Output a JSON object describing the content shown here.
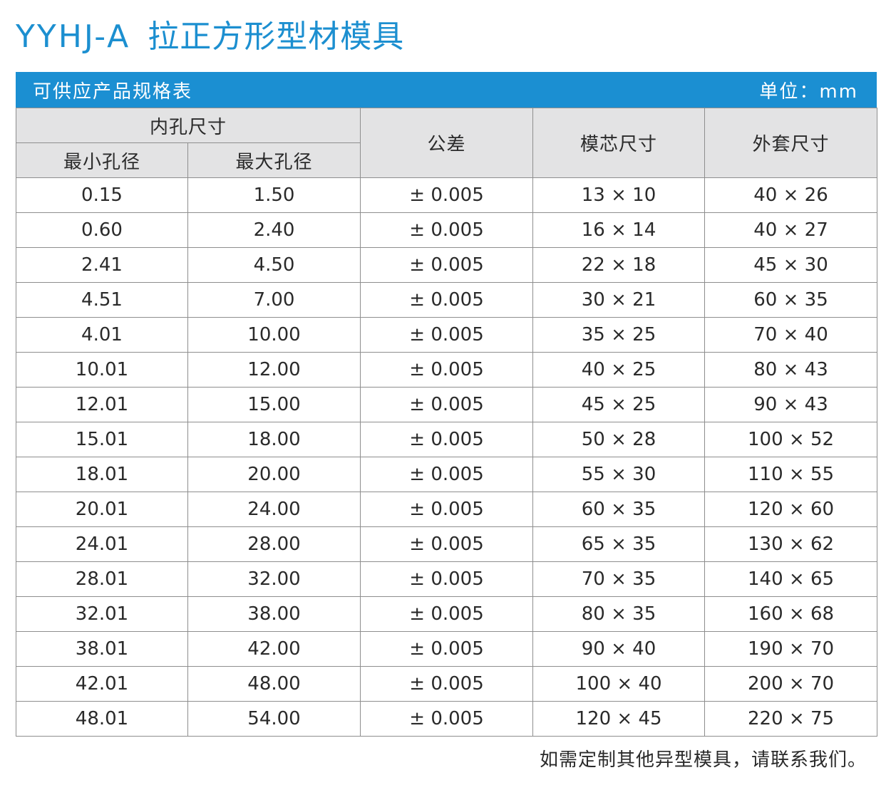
{
  "title": {
    "model": "YYHJ-A",
    "name": "拉正方形型材模具"
  },
  "banner": {
    "left": "可供应产品规格表",
    "right": "单位：mm"
  },
  "headers": {
    "inner_hole": "内孔尺寸",
    "min_hole": "最小孔径",
    "max_hole": "最大孔径",
    "tolerance": "公差",
    "core_size": "模芯尺寸",
    "casing_size": "外套尺寸"
  },
  "rows": [
    [
      "0.15",
      "1.50",
      "± 0.005",
      "13 × 10",
      "40 × 26"
    ],
    [
      "0.60",
      "2.40",
      "± 0.005",
      "16 × 14",
      "40 × 27"
    ],
    [
      "2.41",
      "4.50",
      "± 0.005",
      "22 × 18",
      "45 × 30"
    ],
    [
      "4.51",
      "7.00",
      "± 0.005",
      "30 × 21",
      "60 × 35"
    ],
    [
      "4.01",
      "10.00",
      "± 0.005",
      "35 × 25",
      "70 × 40"
    ],
    [
      "10.01",
      "12.00",
      "± 0.005",
      "40 × 25",
      "80 × 43"
    ],
    [
      "12.01",
      "15.00",
      "± 0.005",
      "45 × 25",
      "90 × 43"
    ],
    [
      "15.01",
      "18.00",
      "± 0.005",
      "50 × 28",
      "100 × 52"
    ],
    [
      "18.01",
      "20.00",
      "± 0.005",
      "55 × 30",
      "110 × 55"
    ],
    [
      "20.01",
      "24.00",
      "± 0.005",
      "60 × 35",
      "120 × 60"
    ],
    [
      "24.01",
      "28.00",
      "± 0.005",
      "65 × 35",
      "130 × 62"
    ],
    [
      "28.01",
      "32.00",
      "± 0.005",
      "70 × 35",
      "140 × 65"
    ],
    [
      "32.01",
      "38.00",
      "± 0.005",
      "80 × 35",
      "160 × 68"
    ],
    [
      "38.01",
      "42.00",
      "± 0.005",
      "90 × 40",
      "190 × 70"
    ],
    [
      "42.01",
      "48.00",
      "± 0.005",
      "100 × 40",
      "200 × 70"
    ],
    [
      "48.01",
      "54.00",
      "± 0.005",
      "120 × 45",
      "220 × 75"
    ]
  ],
  "footer": "如需定制其他异型模具，请联系我们。",
  "colors": {
    "title": "#1c8fd0",
    "banner_bg": "#1b8fd2",
    "header_bg": "#e3e3e4",
    "border": "#8e8e8e"
  }
}
